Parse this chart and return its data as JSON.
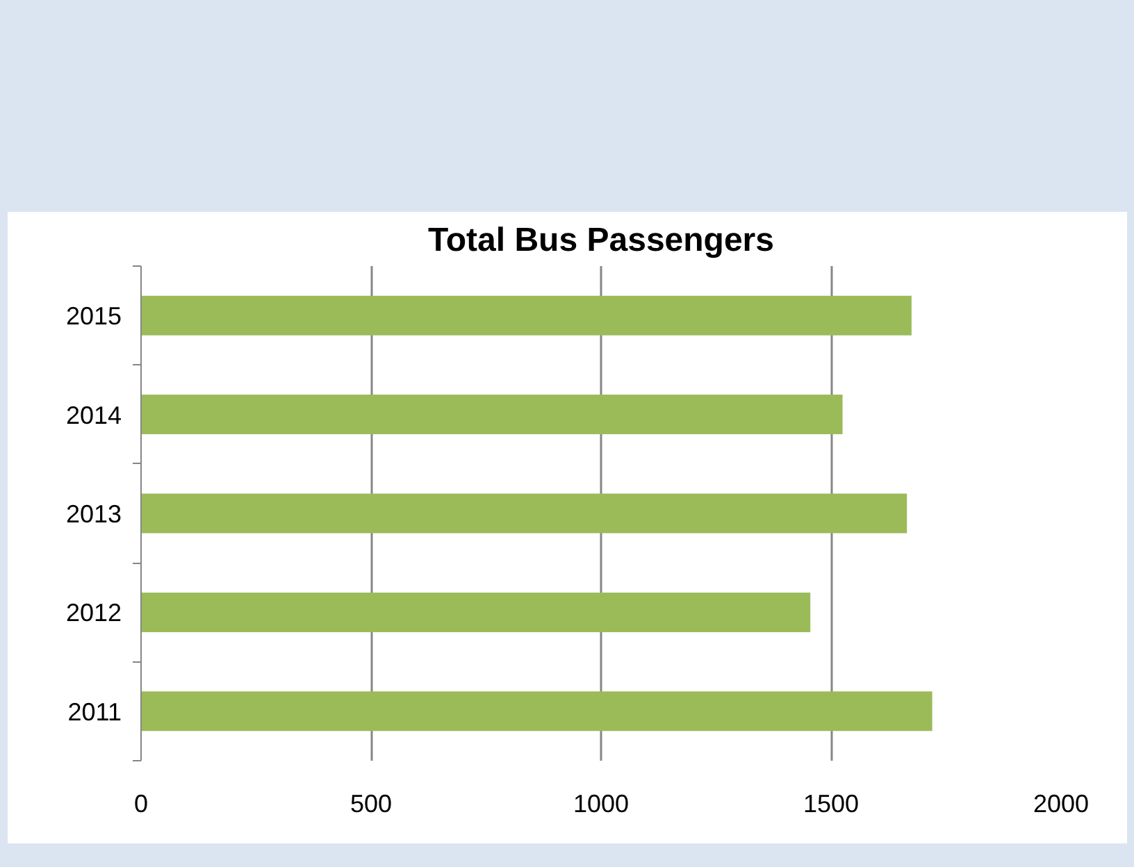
{
  "chart_data": {
    "type": "bar",
    "orientation": "horizontal",
    "title": "Total Bus Passengers",
    "categories": [
      "2015",
      "2014",
      "2013",
      "2012",
      "2011"
    ],
    "values": [
      1675,
      1525,
      1665,
      1455,
      1720
    ],
    "color": "#9bbb59",
    "xlim": [
      0,
      2000
    ],
    "xticks": [
      0,
      500,
      1000,
      1500,
      2000
    ],
    "grid": "x",
    "legend": false
  }
}
